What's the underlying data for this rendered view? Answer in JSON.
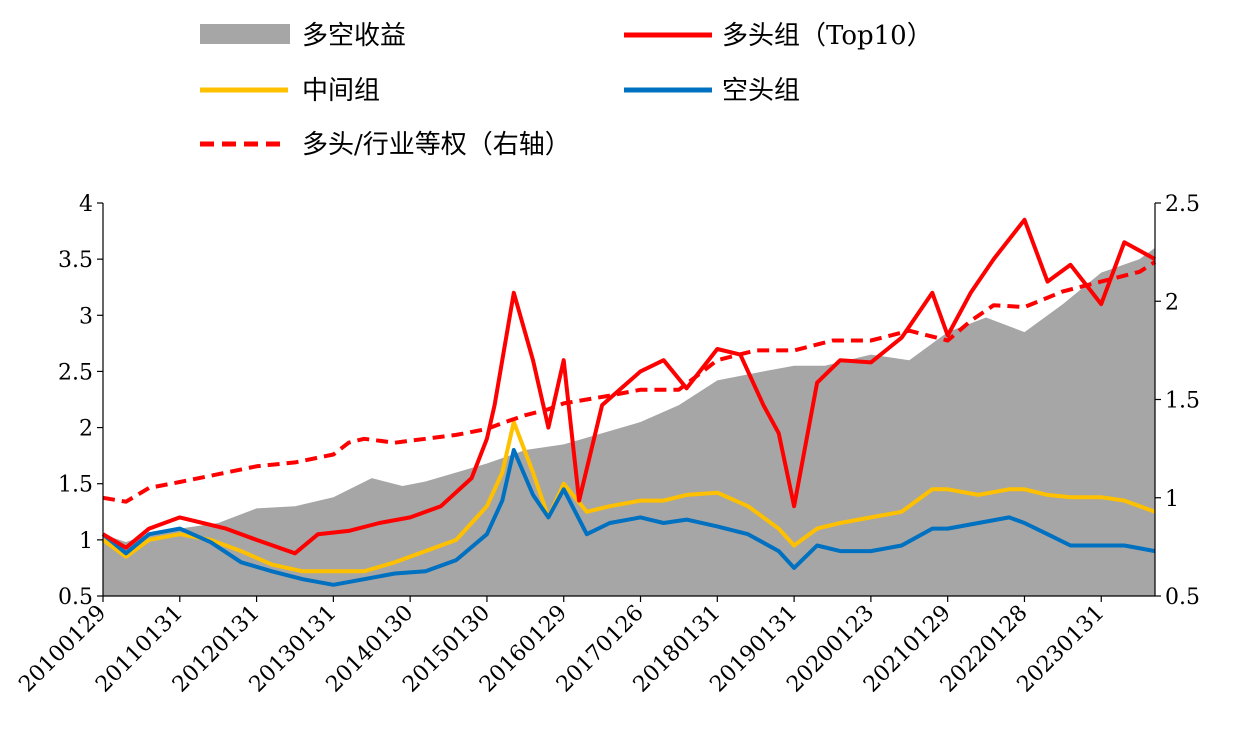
{
  "chart_data": {
    "type": "line",
    "title": "",
    "legend_position": "top",
    "legend": [
      {
        "key": "spread",
        "label": "多空收益",
        "style": "area",
        "color": "#a6a6a6"
      },
      {
        "key": "top",
        "label": "多头组（Top10）",
        "style": "line",
        "color": "#ff0000"
      },
      {
        "key": "mid",
        "label": "中间组",
        "style": "line",
        "color": "#ffc000"
      },
      {
        "key": "short",
        "label": "空头组",
        "style": "line",
        "color": "#0070c0"
      },
      {
        "key": "ratio",
        "label": "多头/行业等权（右轴）",
        "style": "dashed",
        "color": "#ff0000"
      }
    ],
    "x_tick_labels": [
      "20100129",
      "20110131",
      "20120131",
      "20130131",
      "20140130",
      "20150130",
      "20160129",
      "20170126",
      "20180131",
      "20190131",
      "20200123",
      "20210129",
      "20220128",
      "20230131"
    ],
    "x_start_label": "2010-01",
    "x_end_label": "2023-09",
    "y_left": {
      "min": 0.5,
      "max": 4,
      "ticks": [
        0.5,
        1,
        1.5,
        2,
        2.5,
        3,
        3.5,
        4
      ]
    },
    "y_right": {
      "min": 0.5,
      "max": 2.5,
      "ticks": [
        0.5,
        1,
        1.5,
        2,
        2.5
      ]
    },
    "series": [
      {
        "name": "多空收益",
        "axis": "left",
        "x": [
          0,
          0.3,
          0.6,
          1.0,
          1.5,
          2.0,
          2.5,
          3.0,
          3.5,
          3.9,
          4.2,
          4.6,
          5.0,
          5.5,
          6.0,
          6.5,
          7.0,
          7.5,
          8.0,
          8.6,
          9.0,
          9.4,
          10.0,
          10.5,
          11.0,
          11.5,
          12.0,
          12.5,
          13.0,
          13.5,
          13.7
        ],
        "y": [
          1.05,
          0.98,
          1.05,
          1.1,
          1.15,
          1.28,
          1.3,
          1.38,
          1.55,
          1.48,
          1.52,
          1.6,
          1.68,
          1.8,
          1.85,
          1.95,
          2.05,
          2.2,
          2.42,
          2.5,
          2.55,
          2.55,
          2.65,
          2.6,
          2.85,
          2.98,
          2.85,
          3.1,
          3.38,
          3.5,
          3.6
        ]
      },
      {
        "name": "多头组（Top10）",
        "axis": "left",
        "x": [
          0,
          0.3,
          0.6,
          1.0,
          1.3,
          1.6,
          2.0,
          2.5,
          2.8,
          3.2,
          3.6,
          4.0,
          4.4,
          4.8,
          5.0,
          5.1,
          5.35,
          5.6,
          5.8,
          6.0,
          6.2,
          6.5,
          7.0,
          7.3,
          7.6,
          8.0,
          8.3,
          8.6,
          8.8,
          9.0,
          9.3,
          9.6,
          10.0,
          10.4,
          10.8,
          11.0,
          11.3,
          11.6,
          12.0,
          12.3,
          12.6,
          13.0,
          13.3,
          13.7
        ],
        "y": [
          1.05,
          0.93,
          1.1,
          1.2,
          1.15,
          1.1,
          1.0,
          0.88,
          1.05,
          1.08,
          1.15,
          1.2,
          1.3,
          1.55,
          1.9,
          2.2,
          3.2,
          2.6,
          2.0,
          2.6,
          1.35,
          2.2,
          2.5,
          2.6,
          2.35,
          2.7,
          2.65,
          2.2,
          1.95,
          1.3,
          2.4,
          2.6,
          2.58,
          2.8,
          3.2,
          2.82,
          3.2,
          3.5,
          3.85,
          3.3,
          3.45,
          3.1,
          3.65,
          3.5
        ]
      },
      {
        "name": "中间组",
        "axis": "left",
        "x": [
          0,
          0.3,
          0.6,
          1.0,
          1.4,
          1.8,
          2.2,
          2.6,
          3.0,
          3.4,
          3.8,
          4.2,
          4.6,
          5.0,
          5.2,
          5.35,
          5.6,
          5.8,
          6.0,
          6.3,
          6.6,
          7.0,
          7.3,
          7.6,
          8.0,
          8.4,
          8.8,
          9.0,
          9.3,
          9.6,
          10.0,
          10.4,
          10.8,
          11.0,
          11.4,
          11.8,
          12.0,
          12.3,
          12.6,
          13.0,
          13.3,
          13.7
        ],
        "y": [
          1.0,
          0.85,
          1.0,
          1.05,
          1.0,
          0.9,
          0.78,
          0.72,
          0.72,
          0.72,
          0.8,
          0.9,
          1.0,
          1.3,
          1.6,
          2.05,
          1.6,
          1.2,
          1.5,
          1.25,
          1.3,
          1.35,
          1.35,
          1.4,
          1.42,
          1.3,
          1.1,
          0.95,
          1.1,
          1.15,
          1.2,
          1.25,
          1.45,
          1.45,
          1.4,
          1.45,
          1.45,
          1.4,
          1.38,
          1.38,
          1.35,
          1.25
        ]
      },
      {
        "name": "空头组",
        "axis": "left",
        "x": [
          0,
          0.3,
          0.6,
          1.0,
          1.4,
          1.8,
          2.2,
          2.6,
          3.0,
          3.4,
          3.8,
          4.2,
          4.6,
          5.0,
          5.2,
          5.35,
          5.6,
          5.8,
          6.0,
          6.3,
          6.6,
          7.0,
          7.3,
          7.6,
          8.0,
          8.4,
          8.8,
          9.0,
          9.3,
          9.6,
          10.0,
          10.4,
          10.8,
          11.0,
          11.4,
          11.8,
          12.0,
          12.3,
          12.6,
          13.0,
          13.3,
          13.7
        ],
        "y": [
          1.05,
          0.88,
          1.05,
          1.1,
          0.98,
          0.8,
          0.72,
          0.65,
          0.6,
          0.65,
          0.7,
          0.72,
          0.82,
          1.05,
          1.35,
          1.8,
          1.4,
          1.2,
          1.45,
          1.05,
          1.15,
          1.2,
          1.15,
          1.18,
          1.12,
          1.05,
          0.9,
          0.75,
          0.95,
          0.9,
          0.9,
          0.95,
          1.1,
          1.1,
          1.15,
          1.2,
          1.15,
          1.05,
          0.95,
          0.95,
          0.95,
          0.9
        ]
      },
      {
        "name": "多头/行业等权（右轴）",
        "axis": "right",
        "x": [
          0,
          0.3,
          0.6,
          1.0,
          1.5,
          2.0,
          2.5,
          3.0,
          3.2,
          3.4,
          3.8,
          4.2,
          4.6,
          5.0,
          5.2,
          5.5,
          5.8,
          6.0,
          6.3,
          6.6,
          7.0,
          7.5,
          8.0,
          8.5,
          9.0,
          9.5,
          10.0,
          10.5,
          11.0,
          11.3,
          11.6,
          12.0,
          12.5,
          13.0,
          13.5,
          13.7
        ],
        "y": [
          1.0,
          0.98,
          1.05,
          1.08,
          1.12,
          1.16,
          1.18,
          1.22,
          1.28,
          1.3,
          1.28,
          1.3,
          1.32,
          1.35,
          1.38,
          1.42,
          1.45,
          1.48,
          1.5,
          1.52,
          1.55,
          1.55,
          1.7,
          1.75,
          1.75,
          1.8,
          1.8,
          1.85,
          1.8,
          1.9,
          1.98,
          1.97,
          2.05,
          2.1,
          2.15,
          2.2
        ]
      }
    ]
  }
}
